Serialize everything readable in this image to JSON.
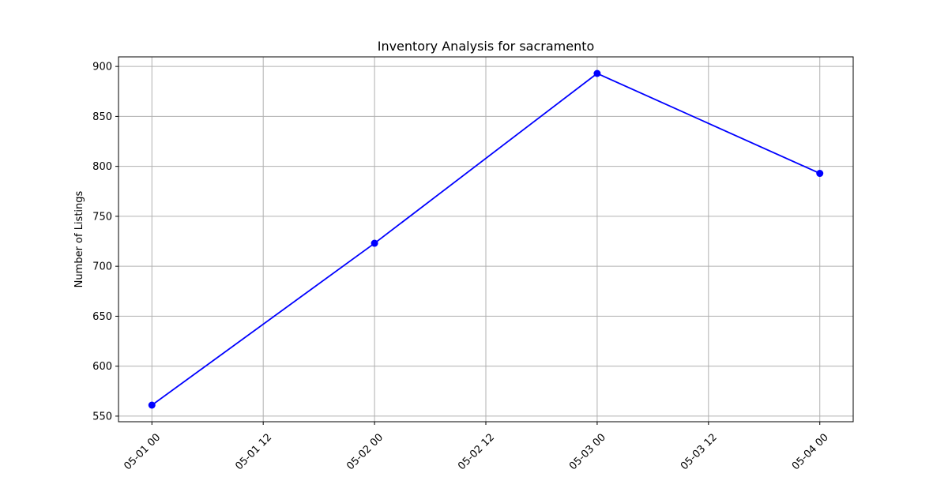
{
  "chart_data": {
    "type": "line",
    "title": "Inventory Analysis for sacramento",
    "xlabel": "",
    "ylabel": "Number of Listings",
    "x": [
      "05-01 00",
      "05-02 00",
      "05-03 00",
      "05-04 00"
    ],
    "series": [
      {
        "values": [
          561,
          723,
          893,
          793
        ],
        "color": "#0000ff"
      }
    ],
    "x_ticks": [
      "05-01 00",
      "05-01 12",
      "05-02 00",
      "05-02 12",
      "05-03 00",
      "05-03 12",
      "05-04 00"
    ],
    "y_ticks": [
      550,
      600,
      650,
      700,
      750,
      800,
      850,
      900
    ],
    "ylim": [
      544.4,
      909.6
    ],
    "grid": true,
    "marker": "circle"
  }
}
